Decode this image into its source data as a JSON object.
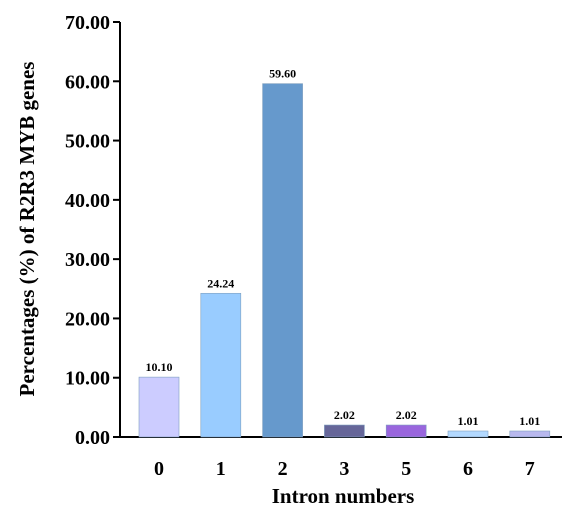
{
  "chart_data": {
    "type": "bar",
    "categories": [
      "0",
      "1",
      "2",
      "3",
      "5",
      "6",
      "7"
    ],
    "values": [
      10.1,
      24.24,
      59.6,
      2.02,
      2.02,
      1.01,
      1.01
    ],
    "value_labels": [
      "10.10",
      "24.24",
      "59.60",
      "2.02",
      "2.02",
      "1.01",
      "1.01"
    ],
    "bar_colors": [
      "#ccccff",
      "#99ccff",
      "#6699cc",
      "#666699",
      "#9966dd",
      "#b3d9ff",
      "#b8b8ee"
    ],
    "xlabel": "Intron numbers",
    "ylabel": "Percentages (%) of R2R3 MYB genes",
    "ylim": [
      0,
      70
    ],
    "yticks": [
      0,
      10,
      20,
      30,
      40,
      50,
      60,
      70
    ],
    "ytick_labels": [
      "0.00",
      "10.00",
      "20.00",
      "30.00",
      "40.00",
      "50.00",
      "60.00",
      "70.00"
    ],
    "grid": false,
    "legend": "none"
  }
}
